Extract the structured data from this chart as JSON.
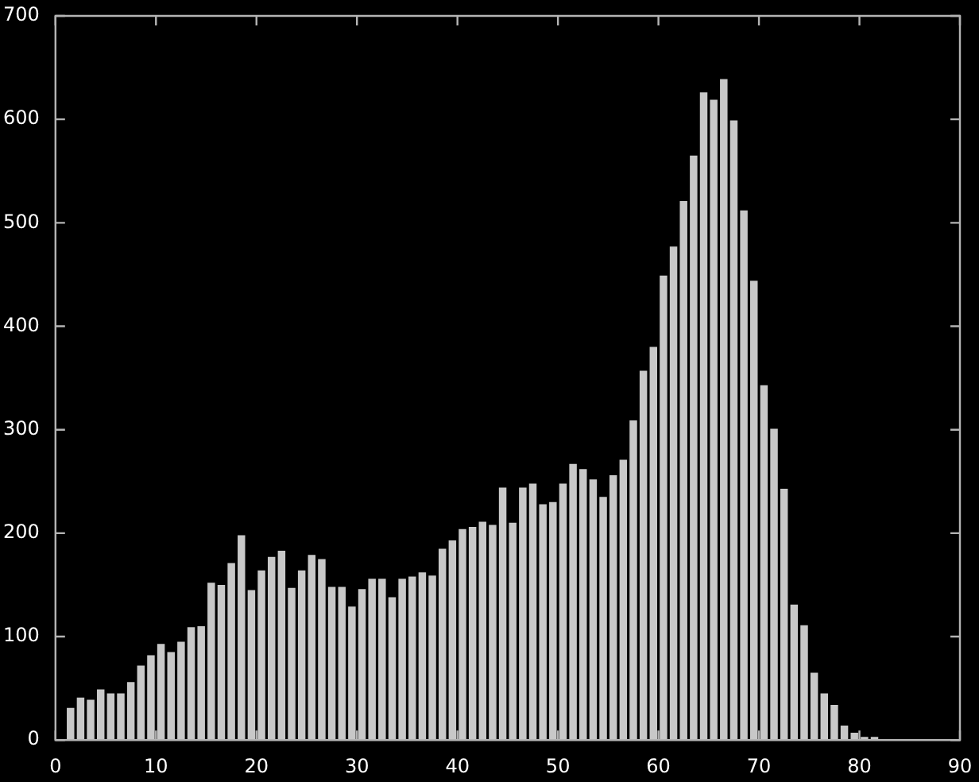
{
  "chart_data": {
    "type": "histogram",
    "bins": [
      1,
      2,
      3,
      4,
      5,
      6,
      7,
      8,
      9,
      10,
      11,
      12,
      13,
      14,
      15,
      16,
      17,
      18,
      19,
      20,
      21,
      22,
      23,
      24,
      25,
      26,
      27,
      28,
      29,
      30,
      31,
      32,
      33,
      34,
      35,
      36,
      37,
      38,
      39,
      40,
      41,
      42,
      43,
      44,
      45,
      46,
      47,
      48,
      49,
      50,
      51,
      52,
      53,
      54,
      55,
      56,
      57,
      58,
      59,
      60,
      61,
      62,
      63,
      64,
      65,
      66,
      67,
      68,
      69,
      70,
      71,
      72,
      73,
      74,
      75,
      76,
      77,
      78,
      79,
      80,
      81,
      82
    ],
    "values": [
      31,
      41,
      39,
      49,
      45,
      45,
      56,
      72,
      82,
      93,
      85,
      95,
      109,
      110,
      152,
      150,
      171,
      198,
      145,
      164,
      177,
      183,
      147,
      164,
      179,
      175,
      148,
      148,
      129,
      146,
      156,
      156,
      138,
      156,
      158,
      162,
      159,
      185,
      193,
      204,
      206,
      211,
      208,
      244,
      210,
      244,
      248,
      228,
      230,
      248,
      267,
      262,
      252,
      235,
      256,
      271,
      309,
      357,
      380,
      449,
      477,
      521,
      565,
      626,
      619,
      639,
      599,
      512,
      444,
      343,
      301,
      243,
      131,
      111,
      65,
      45,
      34,
      14,
      7,
      3,
      3
    ],
    "color": "#c8c8c8",
    "xlim": [
      0,
      90
    ],
    "xticks": [
      0,
      10,
      20,
      30,
      40,
      50,
      60,
      70,
      80,
      90
    ],
    "ylim": [
      0,
      700
    ],
    "yticks": [
      0,
      100,
      200,
      300,
      400,
      500,
      600,
      700
    ]
  }
}
